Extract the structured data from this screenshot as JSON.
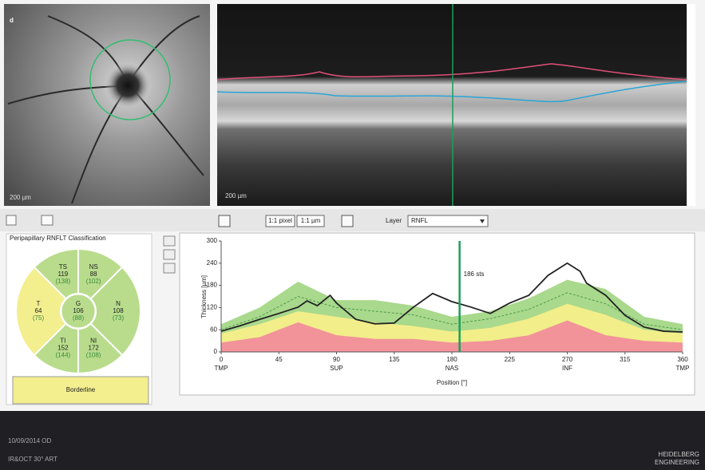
{
  "panel_label": "d",
  "fundus": {
    "scale_bar": "200 µm"
  },
  "bscan": {
    "scale_bar": "200 µm"
  },
  "toolbar": {
    "zoom_pixel": "1:1 pixel",
    "zoom_um": "1:1 µm",
    "layer_label": "Layer",
    "layer_value": "RNFL"
  },
  "classification": {
    "title": "Peripapillary RNFLT Classification",
    "sectors": [
      {
        "name": "TS",
        "value": 119,
        "normal": "(138)",
        "color": "#b8dc8c",
        "angles": [
          90,
          135
        ]
      },
      {
        "name": "NS",
        "value": 88,
        "normal": "(102)",
        "color": "#b8dc8c",
        "angles": [
          45,
          90
        ]
      },
      {
        "name": "N",
        "value": 108,
        "normal": "(73)",
        "color": "#b8dc8c",
        "angles": [
          -45,
          45
        ]
      },
      {
        "name": "NI",
        "value": 172,
        "normal": "(108)",
        "color": "#b8dc8c",
        "angles": [
          -90,
          -45
        ]
      },
      {
        "name": "TI",
        "value": 152,
        "normal": "(144)",
        "color": "#b8dc8c",
        "angles": [
          -135,
          -90
        ]
      },
      {
        "name": "T",
        "value": 64,
        "normal": "(75)",
        "color": "#f3ee8e",
        "angles": [
          135,
          225
        ]
      }
    ],
    "global": {
      "name": "G",
      "value": 106,
      "normal": "(88)",
      "color": "#b8dc8c"
    },
    "result": "Borderline"
  },
  "chart_data": {
    "type": "line",
    "ylabel": "Thickness [µm]",
    "xlabel": "Position [°]",
    "xlim": [
      0,
      360
    ],
    "ylim": [
      0,
      300
    ],
    "xticks": [
      0,
      45,
      90,
      135,
      180,
      225,
      270,
      315,
      360
    ],
    "yticks": [
      0,
      60,
      120,
      180,
      240,
      300
    ],
    "regions": [
      {
        "value": 0,
        "label": "TMP"
      },
      {
        "value": 90,
        "label": "SUP"
      },
      {
        "value": 180,
        "label": "NAS"
      },
      {
        "value": 270,
        "label": "INF"
      },
      {
        "value": 360,
        "label": "TMP"
      }
    ],
    "series": [
      {
        "color": "#222222",
        "x": [
          0,
          15,
          30,
          45,
          60,
          67,
          75,
          85,
          90,
          105,
          120,
          135,
          150,
          165,
          180,
          195,
          210,
          225,
          240,
          255,
          270,
          280,
          285,
          300,
          315,
          330,
          345,
          360
        ],
        "values": [
          56,
          71,
          88,
          104,
          121,
          138,
          125,
          153,
          132,
          88,
          76,
          78,
          121,
          158,
          136,
          121,
          104,
          132,
          153,
          207,
          240,
          218,
          186,
          153,
          99,
          67,
          56,
          54
        ]
      }
    ],
    "normal_bands": {
      "x": [
        0,
        30,
        60,
        90,
        120,
        150,
        180,
        210,
        240,
        270,
        300,
        330,
        360
      ],
      "limits": [
        {
          "color": "#a9d98c",
          "values": [
            75,
            120,
            190,
            140,
            140,
            125,
            95,
            110,
            145,
            195,
            170,
            95,
            75
          ]
        },
        {
          "color": "#f2ee8a",
          "values": [
            50,
            75,
            110,
            95,
            80,
            70,
            55,
            65,
            90,
            130,
            100,
            60,
            50
          ]
        },
        {
          "color": "#f2939a",
          "values": [
            25,
            40,
            80,
            45,
            35,
            35,
            25,
            30,
            45,
            85,
            45,
            30,
            25
          ]
        }
      ],
      "mean": {
        "color": "#4f9a4f",
        "values": [
          60,
          95,
          150,
          120,
          110,
          100,
          75,
          90,
          115,
          160,
          130,
          75,
          60
        ]
      }
    },
    "marker": {
      "x": 186,
      "label": "186 sts",
      "color": "#1aa05a"
    }
  },
  "footer": {
    "date": "10/09/2014 OD",
    "modality": "IR&OCT 30° ART",
    "brand": "HEIDELBERG",
    "brand_sub": "ENGINEERING"
  }
}
